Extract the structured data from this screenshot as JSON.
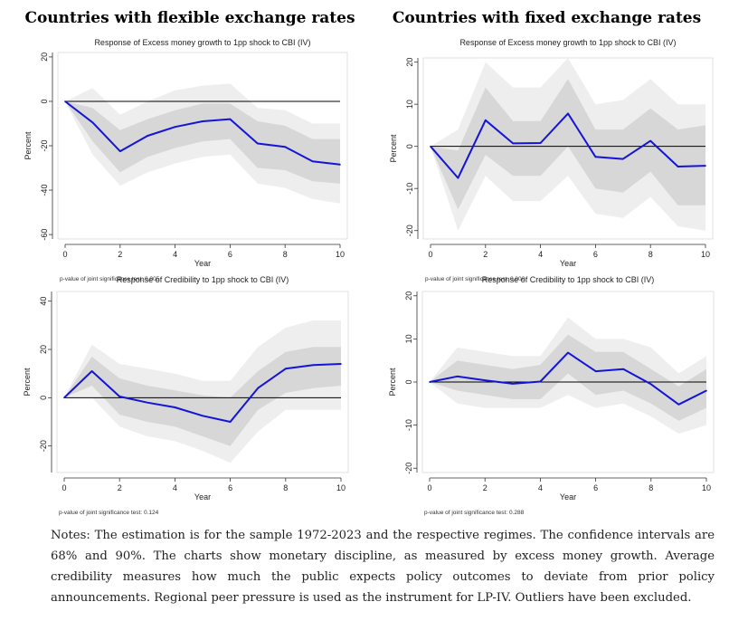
{
  "headers": {
    "left": "Countries with flexible exchange rates",
    "right": "Countries with fixed exchange rates"
  },
  "notes": "Notes: The estimation is for the sample 1972-2023 and the respective regimes. The confidence intervals are 68% and 90%. The charts show monetary discipline, as measured by excess money growth. Average credibility measures how much the public expects policy outcomes to deviate from prior policy announcements. Regional peer pressure is used as the instrument for LP-IV. Outliers have been excluded.",
  "colors": {
    "line": "#1414d8",
    "band68": "#d7d7d7",
    "band90": "#eeeeee",
    "zero": "#000000",
    "axis": "#333333"
  },
  "chart_data": [
    {
      "type": "line",
      "title": "Response of Excess money growth to 1pp shock to CBI (IV)",
      "xlabel": "Year",
      "ylabel": "Percent",
      "note": "p-value of joint significance test: 0.005",
      "x": [
        0,
        1,
        2,
        3,
        4,
        5,
        6,
        7,
        8,
        9,
        10
      ],
      "xticks": [
        0,
        2,
        4,
        6,
        8,
        10
      ],
      "yticks": [
        20,
        0,
        -20,
        -40,
        -60
      ],
      "xlim": [
        0,
        10
      ],
      "ylim": [
        -62,
        22
      ],
      "series": [
        {
          "values": [
            0,
            -9.5,
            -22.5,
            -15.5,
            -11.5,
            -9,
            -8,
            -19,
            -20.5,
            -27,
            -28.5
          ]
        }
      ],
      "ci68": {
        "upper": [
          0,
          -3,
          -13,
          -8,
          -4,
          -1,
          -1,
          -9,
          -11,
          -17,
          -17
        ],
        "lower": [
          0,
          -18,
          -32,
          -25,
          -21,
          -18,
          -17,
          -30,
          -31,
          -36,
          -37
        ]
      },
      "ci90": {
        "upper": [
          0,
          6,
          -6,
          0,
          5,
          7,
          8,
          -3,
          -4,
          -10,
          -10
        ],
        "lower": [
          0,
          -24,
          -38,
          -32,
          -28,
          -25,
          -24,
          -37,
          -39,
          -44,
          -46
        ]
      },
      "grid": false
    },
    {
      "type": "line",
      "title": "Response of Excess money growth to 1pp shock to CBI (IV)",
      "xlabel": "Year",
      "ylabel": "Percent",
      "note": "p-value of joint significance test: 0.000",
      "x": [
        0,
        1,
        2,
        3,
        4,
        5,
        6,
        7,
        8,
        9,
        10
      ],
      "xticks": [
        0,
        2,
        4,
        6,
        8,
        10
      ],
      "yticks": [
        20,
        10,
        0,
        -10,
        -20
      ],
      "xlim": [
        0,
        10
      ],
      "ylim": [
        -22,
        21
      ],
      "series": [
        {
          "values": [
            0,
            -7.5,
            6.2,
            0.7,
            0.8,
            7.8,
            -2.5,
            -3,
            1.3,
            -4.8,
            -4.6
          ]
        }
      ],
      "ci68": {
        "upper": [
          0,
          -1,
          14,
          6,
          6,
          16,
          4,
          4,
          9,
          4,
          5
        ],
        "lower": [
          0,
          -15,
          -2,
          -7,
          -7,
          0,
          -10,
          -11,
          -6,
          -14,
          -14
        ]
      },
      "ci90": {
        "upper": [
          0,
          4,
          20,
          14,
          14,
          21,
          10,
          11,
          16,
          10,
          10
        ],
        "lower": [
          0,
          -20,
          -7,
          -13,
          -13,
          -7,
          -16,
          -17,
          -12,
          -19,
          -20
        ]
      },
      "grid": false
    },
    {
      "type": "line",
      "title": "Response of Credibility to 1pp shock to CBI (IV)",
      "xlabel": "Year",
      "ylabel": "Percent",
      "note": "p-value of joint significance test: 0.124",
      "x": [
        0,
        1,
        2,
        3,
        4,
        5,
        6,
        7,
        8,
        9,
        10
      ],
      "xticks": [
        0,
        2,
        4,
        6,
        8,
        10
      ],
      "yticks": [
        40,
        20,
        0,
        -20
      ],
      "xlim": [
        0,
        10
      ],
      "ylim": [
        -31,
        44
      ],
      "series": [
        {
          "values": [
            0,
            11,
            0.5,
            -2,
            -4,
            -7.5,
            -10,
            4,
            12,
            13.5,
            14
          ]
        }
      ],
      "ci68": {
        "upper": [
          0,
          17,
          8,
          5,
          3,
          1,
          0,
          11,
          19,
          21,
          21
        ],
        "lower": [
          0,
          5,
          -7,
          -10,
          -12,
          -16,
          -20,
          -5,
          2,
          4,
          5
        ]
      },
      "ci90": {
        "upper": [
          0,
          22,
          14,
          12,
          10,
          7,
          7,
          21,
          29,
          32,
          32
        ],
        "lower": [
          0,
          0,
          -12,
          -16,
          -18,
          -22,
          -27,
          -14,
          -5,
          -5,
          -5
        ]
      },
      "grid": false
    },
    {
      "type": "line",
      "title": "Response of Credibility to 1pp shock to CBI (IV)",
      "xlabel": "Year",
      "ylabel": "Percent",
      "note": "p-value of joint significance test: 0.288",
      "x": [
        0,
        1,
        2,
        3,
        4,
        5,
        6,
        7,
        8,
        9,
        10
      ],
      "xticks": [
        0,
        2,
        4,
        6,
        8,
        10
      ],
      "yticks": [
        20,
        10,
        0,
        -10,
        -20
      ],
      "xlim": [
        0,
        10
      ],
      "ylim": [
        -21,
        21
      ],
      "series": [
        {
          "values": [
            0,
            1.3,
            0.4,
            -0.4,
            0.1,
            6.8,
            2.5,
            3,
            -0.5,
            -5.2,
            -2
          ]
        }
      ],
      "ci68": {
        "upper": [
          0,
          5,
          4,
          3,
          4,
          11,
          7,
          7,
          3,
          -1,
          3
        ],
        "lower": [
          0,
          -2,
          -3,
          -4,
          -4,
          2,
          -3,
          -2,
          -5,
          -9,
          -6
        ]
      },
      "ci90": {
        "upper": [
          0,
          8,
          7,
          6,
          6,
          15,
          10,
          10,
          8,
          2,
          6
        ],
        "lower": [
          0,
          -5,
          -6,
          -6,
          -6,
          -3,
          -6,
          -5,
          -8,
          -12,
          -10
        ]
      },
      "grid": false
    }
  ]
}
